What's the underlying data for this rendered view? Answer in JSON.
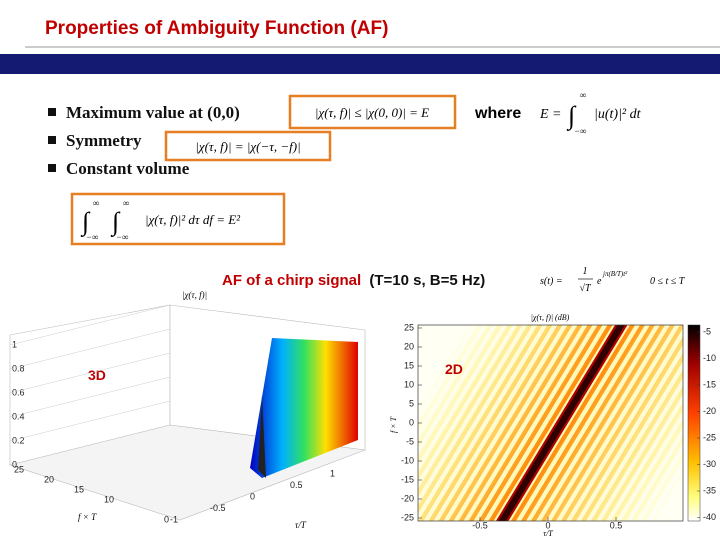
{
  "header": {
    "title": "Properties of Ambiguity Function (AF)"
  },
  "bullets": [
    "Maximum value at (0,0)",
    "Symmetry",
    "Constant volume"
  ],
  "max_formula": "|χ(τ, f)| ≤ |χ(0, 0)| = E",
  "where": "where",
  "energy": {
    "lhs": "E =",
    "integral": "∫",
    "upper": "∞",
    "lower": "−∞",
    "integrand": "|u(t)|² dt"
  },
  "symmetry_formula": "|χ(τ, f)| = |χ(−τ, −f)|",
  "volume": {
    "integral": "∫",
    "upper": "∞",
    "lower": "−∞",
    "integrand": "|χ(τ, f)|² dτ df = E²"
  },
  "caption": {
    "text": "AF of a chirp signal",
    "params": "(T=10 s, B=5 Hz)"
  },
  "signal": {
    "lhs": "s(t) =",
    "num": "1",
    "den": "√T",
    "base": "e",
    "exp": "jπ(B/T)t²",
    "range": "0 ≤ t ≤ T"
  },
  "plot3d": {
    "label": "3D",
    "zlabel": "|χ(τ, f)|",
    "zticks": [
      1,
      0.8,
      0.6,
      0.4,
      0.2,
      0
    ],
    "flabel": "f × T",
    "fticks": [
      25,
      20,
      15,
      10,
      0
    ],
    "tlabel": "τ/T",
    "tticks": [
      1,
      0.5,
      0,
      -0.5,
      -1
    ]
  },
  "plot2d": {
    "label": "2D",
    "title": "|χ(τ, f)| (dB)",
    "ylabel": "f × T",
    "xlabel": "τ/T",
    "yticks": [
      25,
      20,
      15,
      10,
      5,
      0,
      -5,
      -10,
      -15,
      -20,
      -25
    ],
    "xticks": [
      -0.5,
      0,
      0.5
    ],
    "cticks": [
      -5,
      -10,
      -15,
      -20,
      -25,
      -30,
      -35,
      -40
    ]
  }
}
